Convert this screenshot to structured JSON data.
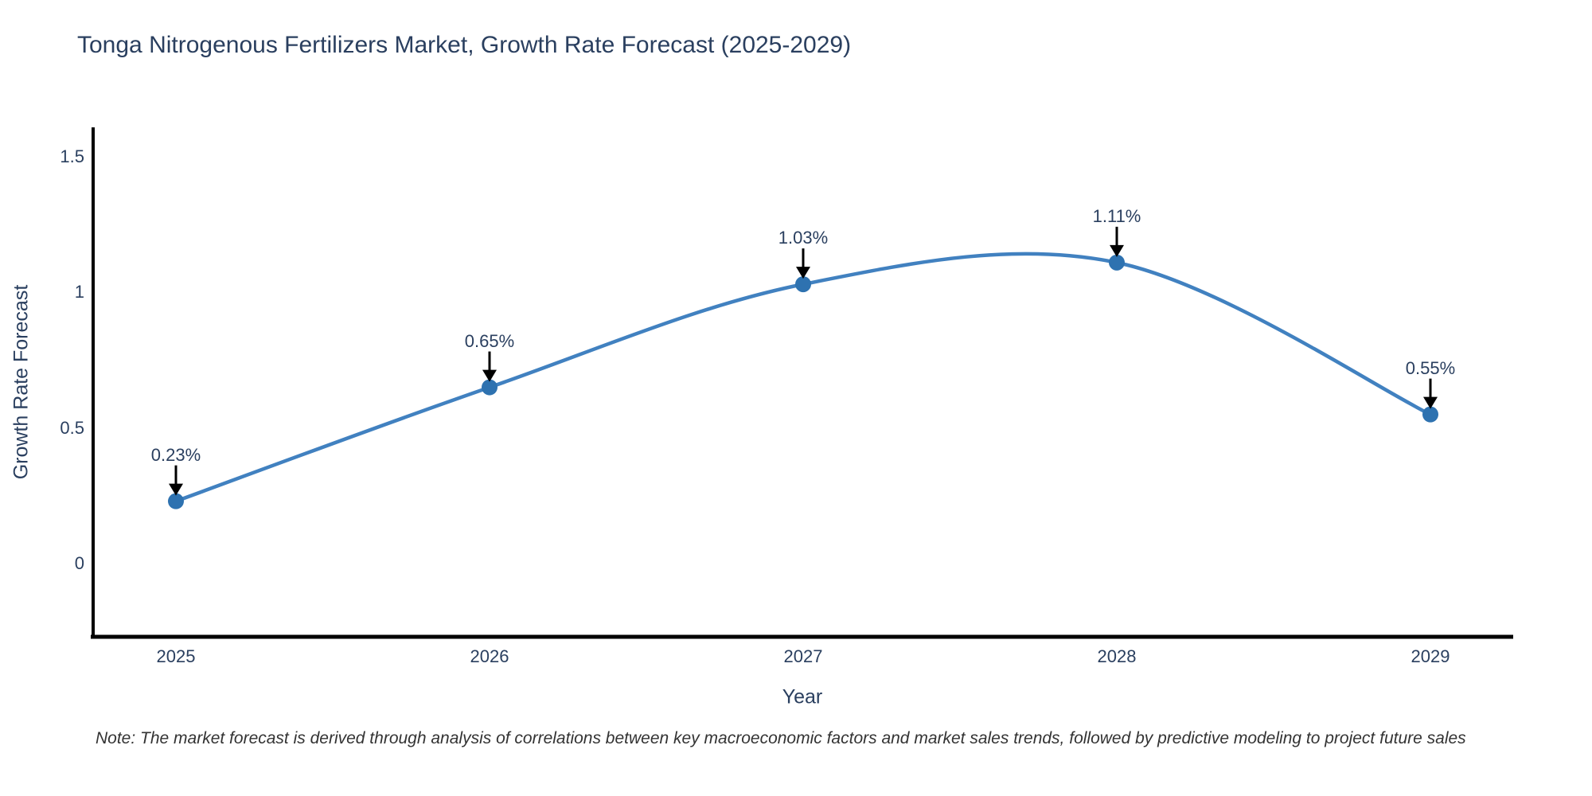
{
  "title": "Tonga Nitrogenous Fertilizers Market, Growth Rate Forecast (2025-2029)",
  "note": "Note: The market forecast is derived through analysis of correlations between key macroeconomic factors and market sales trends, followed by predictive modeling to project future sales",
  "chart_data": {
    "type": "line",
    "line_shape": "spline",
    "title": "Tonga Nitrogenous Fertilizers Market, Growth Rate Forecast (2025-2029)",
    "x": [
      2025,
      2026,
      2027,
      2028,
      2029
    ],
    "y": [
      0.23,
      0.65,
      1.03,
      1.11,
      0.55
    ],
    "point_labels": [
      "0.23%",
      "0.65%",
      "1.03%",
      "1.11%",
      "0.55%"
    ],
    "xlabel": "Year",
    "ylabel": "Growth Rate Forecast",
    "yticks": [
      0,
      0.5,
      1,
      1.5
    ],
    "ytick_labels": [
      "0",
      "0.5",
      "1",
      "1.5"
    ],
    "xtick_labels": [
      "2025",
      "2026",
      "2027",
      "2028",
      "2029"
    ],
    "xlim": [
      2024.73,
      2029.26
    ],
    "ylim": [
      -0.27,
      1.61
    ],
    "grid": false,
    "legend": "none",
    "line_color": "#4181c0",
    "marker_color": "#2e72b0",
    "arrow_color": "#000000",
    "axis_color": "#000000",
    "font_color": "#2a3f5f"
  }
}
